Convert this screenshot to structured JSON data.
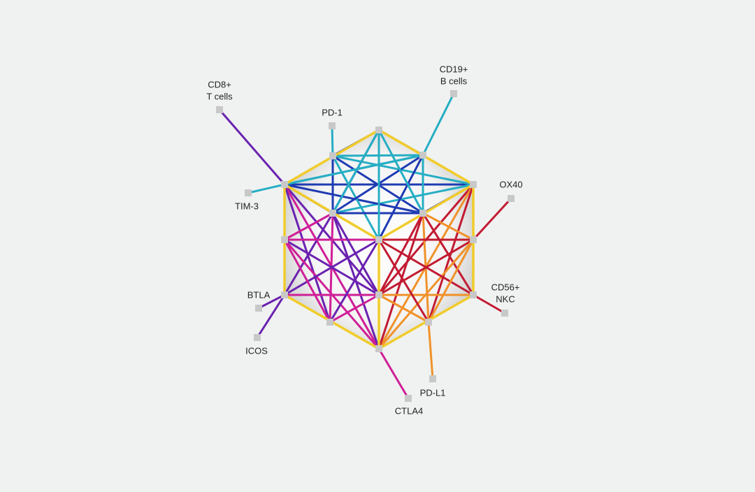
{
  "nodes": [
    {
      "lines": [
        "CD8+",
        "T cells"
      ]
    },
    {
      "lines": [
        "CD19+",
        "B cells"
      ]
    },
    {
      "lines": [
        "PD-1"
      ]
    },
    {
      "lines": [
        "TIM-3"
      ]
    },
    {
      "lines": [
        "OX40"
      ]
    },
    {
      "lines": [
        "CD56+",
        "NKC"
      ]
    },
    {
      "lines": [
        "BTLA"
      ]
    },
    {
      "lines": [
        "ICOS"
      ]
    },
    {
      "lines": [
        "CTLA4"
      ]
    },
    {
      "lines": [
        "PD-L1"
      ]
    }
  ]
}
